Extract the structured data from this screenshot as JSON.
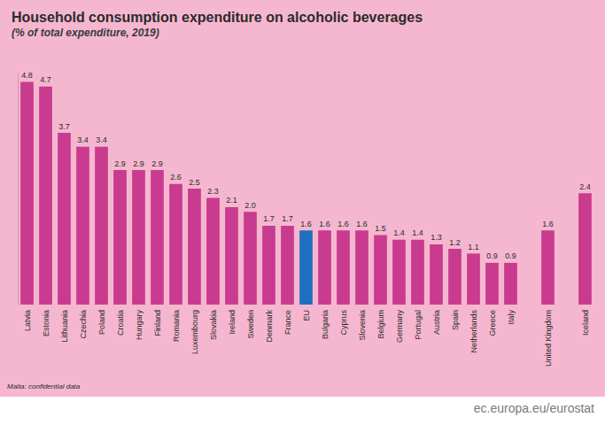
{
  "chart_data": {
    "type": "bar",
    "title": "Household consumption expenditure on alcoholic beverages",
    "subtitle": "(% of total expenditure, 2019)",
    "categories": [
      "Latvia",
      "Estonia",
      "Lithuania",
      "Czechia",
      "Poland",
      "Croatia",
      "Hungary",
      "Finland",
      "Romania",
      "Luxembourg",
      "Slovakia",
      "Ireland",
      "Sweden",
      "Denmark",
      "France",
      "EU",
      "Bulgaria",
      "Cyprus",
      "Slovenia",
      "Belgium",
      "Germany",
      "Portugal",
      "Austria",
      "Spain",
      "Netherlands",
      "Greece",
      "Italy",
      null,
      "United Kingdom",
      null,
      "Iceland"
    ],
    "values": [
      4.8,
      4.7,
      3.7,
      3.4,
      3.4,
      2.9,
      2.9,
      2.9,
      2.6,
      2.5,
      2.3,
      2.1,
      2.0,
      1.7,
      1.7,
      1.6,
      1.6,
      1.6,
      1.6,
      1.5,
      1.4,
      1.4,
      1.3,
      1.2,
      1.1,
      0.9,
      0.9,
      null,
      1.6,
      null,
      2.4
    ],
    "value_labels": [
      "4.8",
      "4.7",
      "3.7",
      "3.4",
      "3.4",
      "2.9",
      "2.9",
      "2.9",
      "2.6",
      "2.5",
      "2.3",
      "2.1",
      "2.0",
      "1.7",
      "1.7",
      "1.6",
      "1.6",
      "1.6",
      "1.6",
      "1.5",
      "1.4",
      "1.4",
      "1.3",
      "1.2",
      "1.1",
      "0.9",
      "0.9",
      null,
      "1.6",
      null,
      "2.4"
    ],
    "colors": [
      "#c93b8f",
      "#c93b8f",
      "#c93b8f",
      "#c93b8f",
      "#c93b8f",
      "#c93b8f",
      "#c93b8f",
      "#c93b8f",
      "#c93b8f",
      "#c93b8f",
      "#c93b8f",
      "#c93b8f",
      "#c93b8f",
      "#c93b8f",
      "#c93b8f",
      "#1f6fc0",
      "#c93b8f",
      "#c93b8f",
      "#c93b8f",
      "#c93b8f",
      "#c93b8f",
      "#c93b8f",
      "#c93b8f",
      "#c93b8f",
      "#c93b8f",
      "#c93b8f",
      "#c93b8f",
      null,
      "#c93b8f",
      null,
      "#c93b8f"
    ],
    "ylim": [
      0,
      5
    ],
    "grid": false,
    "data_labels": true,
    "tick_labels": "x",
    "note": "Malta: confidential data",
    "source": "ec.europa.eu/eurostat"
  }
}
